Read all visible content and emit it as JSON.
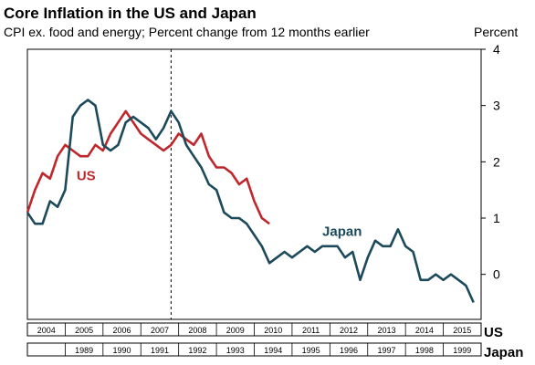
{
  "chart_data": {
    "type": "line",
    "title": "Core Inflation  in the US and Japan",
    "subtitle": "CPI ex. food and energy; Percent change from 12 months earlier",
    "ylabel": "Percent",
    "ylim": [
      -0.8,
      4
    ],
    "yticks": [
      0,
      1,
      2,
      3,
      4
    ],
    "grid": false,
    "x_axes": [
      {
        "name": "US",
        "range": [
          2004,
          2016
        ],
        "tick_labels": [
          "2004",
          "2005",
          "2006",
          "2007",
          "2008",
          "2009",
          "2010",
          "2011",
          "2012",
          "2013",
          "2014",
          "2015"
        ]
      },
      {
        "name": "Japan",
        "range": [
          1988,
          2000
        ],
        "tick_labels": [
          "1989",
          "1990",
          "1991",
          "1992",
          "1993",
          "1994",
          "1995",
          "1996",
          "1997",
          "1998",
          "1999"
        ]
      }
    ],
    "reference_line": {
      "x": 2007.8,
      "style": "dashed"
    },
    "series": [
      {
        "name": "US",
        "color": "#c0272d",
        "x": [
          2004.0,
          2004.2,
          2004.4,
          2004.6,
          2004.8,
          2005.0,
          2005.2,
          2005.4,
          2005.6,
          2005.8,
          2006.0,
          2006.2,
          2006.4,
          2006.6,
          2006.8,
          2007.0,
          2007.2,
          2007.4,
          2007.6,
          2007.8,
          2008.0,
          2008.2,
          2008.4,
          2008.6,
          2008.8,
          2009.0,
          2009.2,
          2009.4,
          2009.6,
          2009.8,
          2010.0,
          2010.2,
          2010.4
        ],
        "values": [
          1.1,
          1.5,
          1.8,
          1.7,
          2.1,
          2.3,
          2.2,
          2.1,
          2.1,
          2.3,
          2.2,
          2.5,
          2.7,
          2.9,
          2.7,
          2.5,
          2.4,
          2.3,
          2.2,
          2.3,
          2.5,
          2.4,
          2.3,
          2.5,
          2.1,
          1.9,
          1.9,
          1.8,
          1.6,
          1.7,
          1.3,
          1.0,
          0.9
        ]
      },
      {
        "name": "Japan",
        "color": "#1c4a5a",
        "x": [
          2004.0,
          2004.2,
          2004.4,
          2004.6,
          2004.8,
          2005.0,
          2005.2,
          2005.4,
          2005.6,
          2005.8,
          2006.0,
          2006.2,
          2006.4,
          2006.6,
          2006.8,
          2007.0,
          2007.2,
          2007.4,
          2007.6,
          2007.8,
          2008.0,
          2008.2,
          2008.4,
          2008.6,
          2008.8,
          2009.0,
          2009.2,
          2009.4,
          2009.6,
          2009.8,
          2010.0,
          2010.2,
          2010.4,
          2010.6,
          2010.8,
          2011.0,
          2011.2,
          2011.4,
          2011.6,
          2011.8,
          2012.0,
          2012.2,
          2012.4,
          2012.6,
          2012.8,
          2013.0,
          2013.2,
          2013.4,
          2013.6,
          2013.8,
          2014.0,
          2014.2,
          2014.4,
          2014.6,
          2014.8,
          2015.0,
          2015.2,
          2015.4,
          2015.6,
          2015.8
        ],
        "values": [
          1.1,
          0.9,
          0.9,
          1.3,
          1.2,
          1.5,
          2.8,
          3.0,
          3.1,
          3.0,
          2.3,
          2.2,
          2.3,
          2.7,
          2.8,
          2.7,
          2.6,
          2.4,
          2.6,
          2.9,
          2.7,
          2.3,
          2.1,
          1.9,
          1.6,
          1.5,
          1.1,
          1.0,
          1.0,
          0.9,
          0.7,
          0.5,
          0.2,
          0.3,
          0.4,
          0.3,
          0.4,
          0.5,
          0.4,
          0.5,
          0.5,
          0.5,
          0.3,
          0.4,
          -0.1,
          0.3,
          0.6,
          0.5,
          0.5,
          0.8,
          0.5,
          0.4,
          -0.1,
          -0.1,
          0.0,
          -0.1,
          0.0,
          -0.1,
          -0.2,
          -0.5
        ]
      }
    ],
    "annotations": [
      {
        "text": "US",
        "x": 2005.3,
        "y": 1.67
      },
      {
        "text": "Japan",
        "x": 2011.8,
        "y": 0.68
      }
    ]
  }
}
